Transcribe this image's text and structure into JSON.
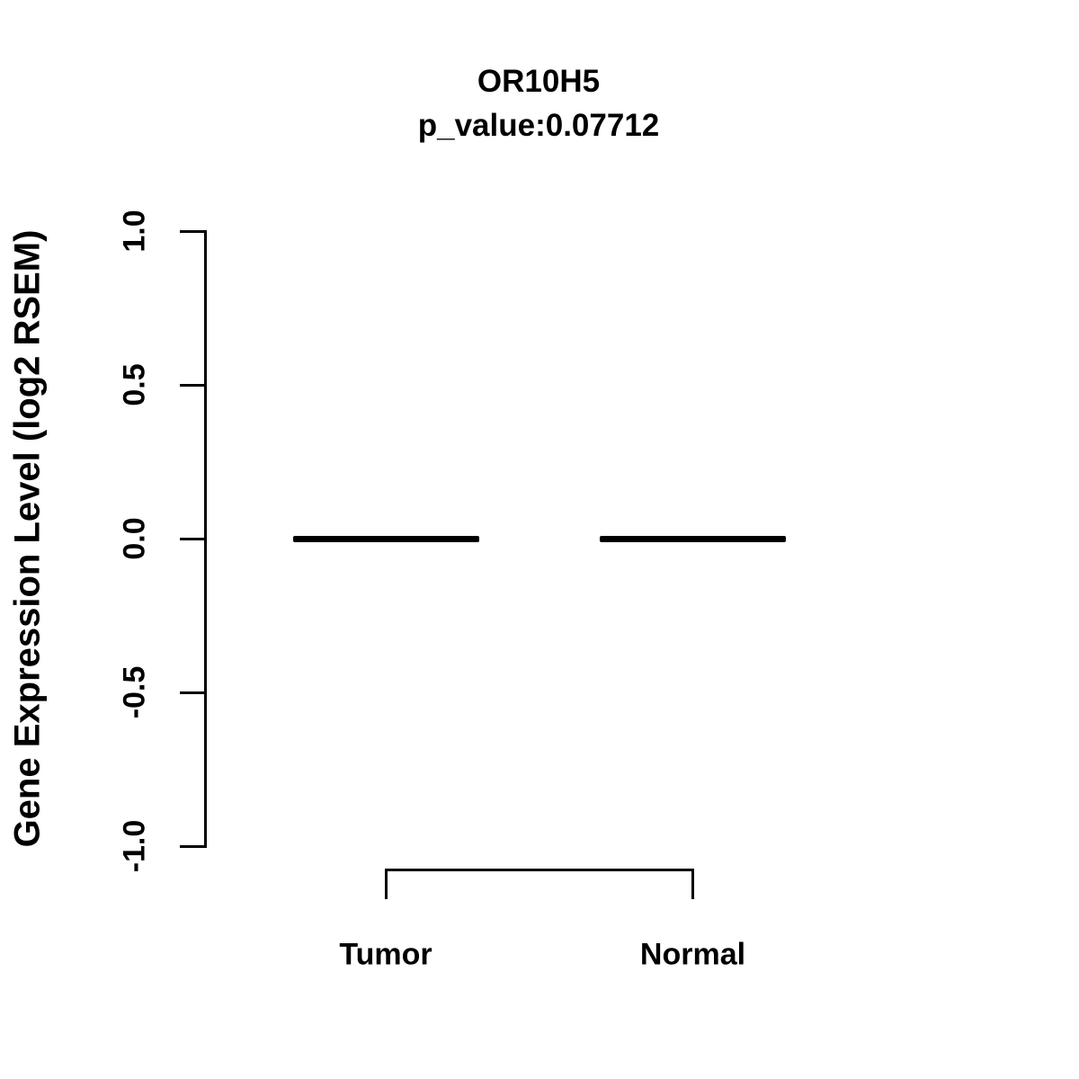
{
  "title": {
    "gene": "OR10H5",
    "p_value": "p_value:0.07712"
  },
  "y_axis": {
    "label": "Gene Expression Level (log2 RSEM)"
  },
  "chart_data": {
    "type": "boxplot",
    "categories": [
      "Tumor",
      "Normal"
    ],
    "series": [
      {
        "name": "Tumor",
        "median": 0.0,
        "q1": 0.0,
        "q3": 0.0,
        "whisker_low": 0.0,
        "whisker_high": 0.0
      },
      {
        "name": "Normal",
        "median": 0.0,
        "q1": 0.0,
        "q3": 0.0,
        "whisker_low": 0.0,
        "whisker_high": 0.0
      }
    ],
    "title": "OR10H5",
    "subtitle": "p_value:0.07712",
    "p_value": 0.07712,
    "xlabel": "",
    "ylabel": "Gene Expression Level (log2 RSEM)",
    "ylim": [
      -1.0,
      1.0
    ],
    "yticks": [
      1.0,
      0.5,
      0.0,
      -0.5,
      -1.0
    ],
    "ytick_labels": [
      "1.0",
      "0.5",
      "0.0",
      "-0.5",
      "-1.0"
    ],
    "grid": false,
    "legend": false,
    "annotations": [
      {
        "type": "comparison-bracket",
        "from": "Tumor",
        "to": "Normal"
      }
    ],
    "colors": {
      "foreground": "#000000",
      "background": "#ffffff"
    }
  }
}
